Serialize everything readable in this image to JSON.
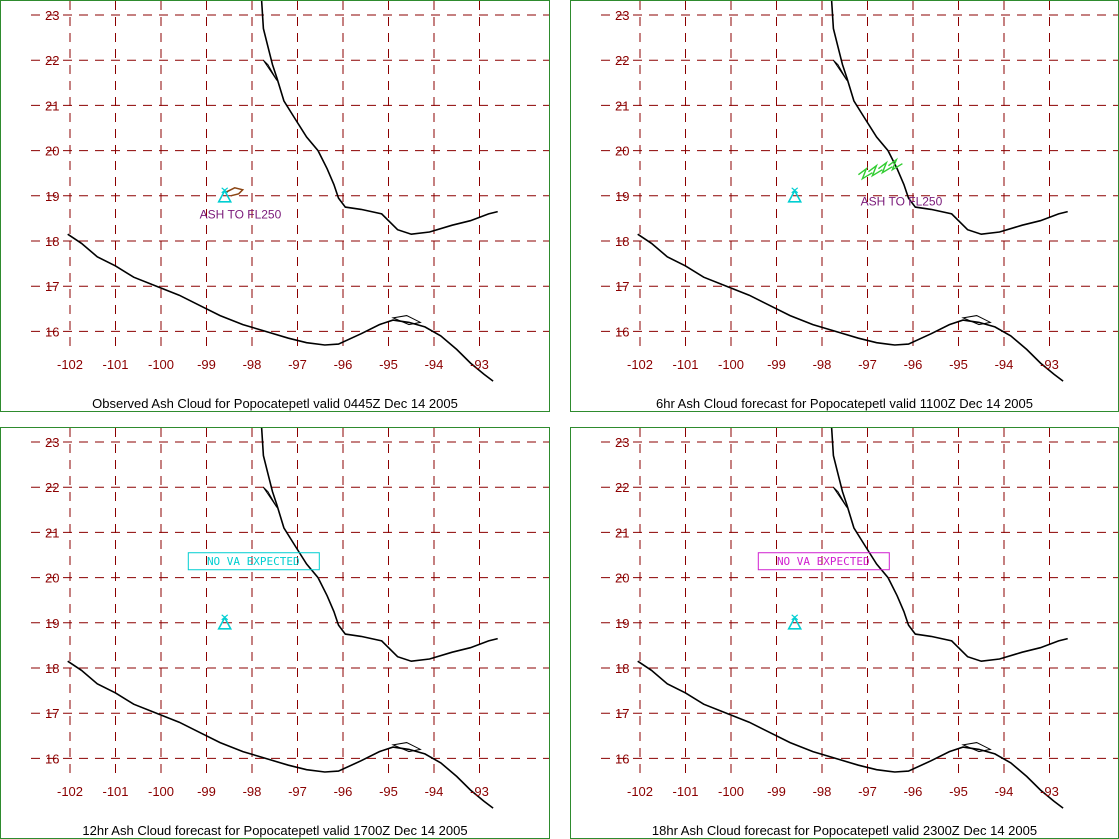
{
  "lat_ticks": [
    "16",
    "17",
    "18",
    "19",
    "20",
    "21",
    "22",
    "23"
  ],
  "lon_ticks": [
    "-102",
    "-101",
    "-100",
    "-99",
    "-98",
    "-97",
    "-96",
    "-95",
    "-94",
    "-93"
  ],
  "colors": {
    "grid": "#8b0000",
    "coast": "#000000",
    "border": "#2e8b2e",
    "volcano": "#00ced1",
    "observed_plume": "#8b4513",
    "forecast_plume": "#32cd32",
    "annotation": "#7a1a7a",
    "no_va_12hr": "#00ced1",
    "no_va_18hr": "#d020d0"
  },
  "panels": [
    {
      "caption": "Observed Ash Cloud for Popocatepetl valid 0445Z Dec 14 2005",
      "annotation": "ASH TO FL250",
      "box_label": "",
      "plume": "observed"
    },
    {
      "caption": "6hr Ash Cloud forecast for Popocatepetl valid 1100Z Dec 14 2005",
      "annotation": "ASH TO FL250",
      "box_label": "",
      "plume": "forecast"
    },
    {
      "caption": "12hr Ash Cloud forecast for Popocatepetl valid 1700Z Dec 14 2005",
      "annotation": "",
      "box_label": "NO VA EXPECTED",
      "plume": "none"
    },
    {
      "caption": "18hr Ash Cloud forecast for Popocatepetl valid 2300Z Dec 14 2005",
      "annotation": "",
      "box_label": "NO VA EXPECTED",
      "plume": "none"
    }
  ]
}
